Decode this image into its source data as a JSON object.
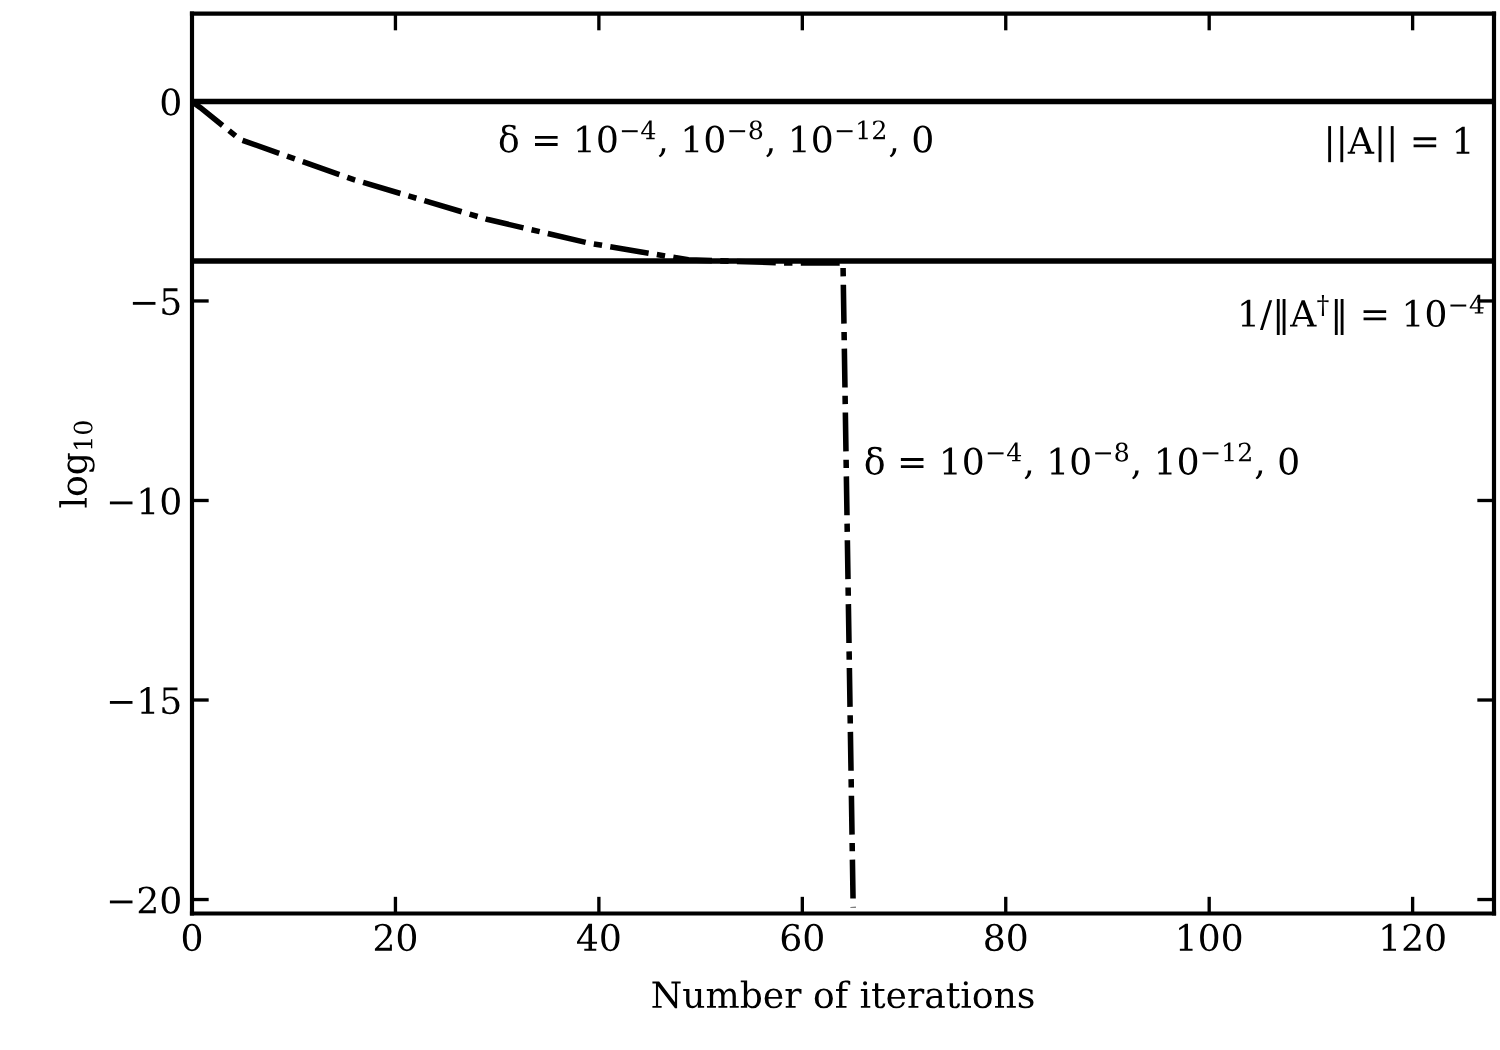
{
  "chart_data": {
    "type": "line",
    "xlabel": "Number of iterations",
    "ylabel": "log$_{10}$",
    "series": [
      {
        "color": "#000000",
        "line_style": "dashed",
        "x": [
          0,
          0.8,
          4.7,
          15.9,
          29.1,
          39,
          48.8,
          58.6,
          64,
          65
        ],
        "values": [
          0,
          -0.15,
          -0.95,
          -1.96,
          -2.96,
          -3.55,
          -3.97,
          -4.05,
          -4.05,
          -20.2
        ]
      }
    ],
    "ref_lines": [
      {
        "axis": "y",
        "value": 0,
        "color": "#000000",
        "line_style": "solid"
      },
      {
        "axis": "y",
        "value": -4,
        "color": "#000000",
        "line_style": "solid"
      }
    ],
    "annotations": [
      "δ = 10$^{−4}$, 10$^{−8}$, 10$^{−12}$, 0",
      "||A|| = 1",
      "1/‖A$^{†}$‖ = 10$^{−4}$",
      "δ = 10$^{−4}$, 10$^{−8}$, 10$^{−12}$, 0"
    ],
    "xlim": [
      0,
      128
    ],
    "ylim": [
      -20.35,
      2.2
    ],
    "xticks": [
      0,
      20,
      40,
      60,
      80,
      100,
      120
    ],
    "yticks": [
      0,
      -5,
      -10,
      -15,
      -20
    ],
    "grid": false,
    "legend": false,
    "marker": "none"
  }
}
